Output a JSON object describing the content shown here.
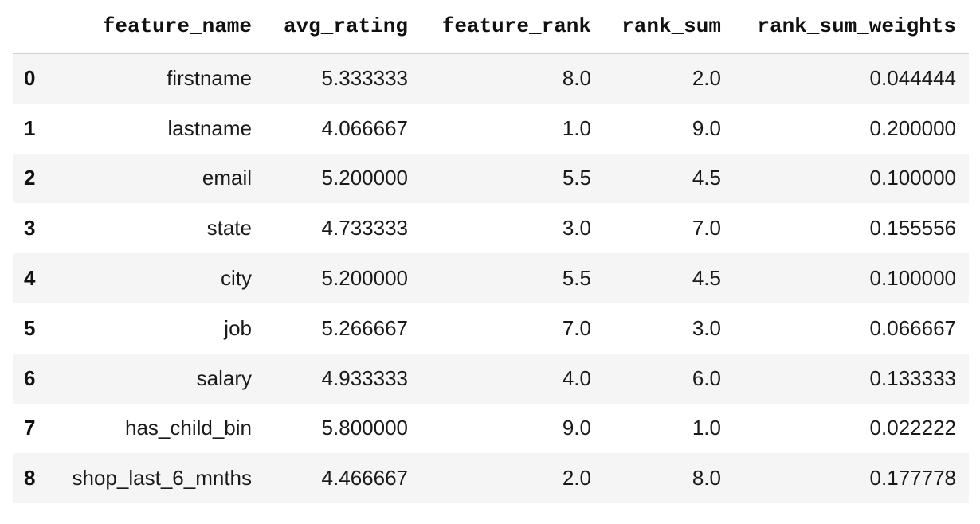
{
  "table": {
    "columns": [
      "",
      "feature_name",
      "avg_rating",
      "feature_rank",
      "rank_sum",
      "rank_sum_weights"
    ],
    "rows": [
      {
        "index": "0",
        "feature_name": "firstname",
        "avg_rating": "5.333333",
        "feature_rank": "8.0",
        "rank_sum": "2.0",
        "rank_sum_weights": "0.044444"
      },
      {
        "index": "1",
        "feature_name": "lastname",
        "avg_rating": "4.066667",
        "feature_rank": "1.0",
        "rank_sum": "9.0",
        "rank_sum_weights": "0.200000"
      },
      {
        "index": "2",
        "feature_name": "email",
        "avg_rating": "5.200000",
        "feature_rank": "5.5",
        "rank_sum": "4.5",
        "rank_sum_weights": "0.100000"
      },
      {
        "index": "3",
        "feature_name": "state",
        "avg_rating": "4.733333",
        "feature_rank": "3.0",
        "rank_sum": "7.0",
        "rank_sum_weights": "0.155556"
      },
      {
        "index": "4",
        "feature_name": "city",
        "avg_rating": "5.200000",
        "feature_rank": "5.5",
        "rank_sum": "4.5",
        "rank_sum_weights": "0.100000"
      },
      {
        "index": "5",
        "feature_name": "job",
        "avg_rating": "5.266667",
        "feature_rank": "7.0",
        "rank_sum": "3.0",
        "rank_sum_weights": "0.066667"
      },
      {
        "index": "6",
        "feature_name": "salary",
        "avg_rating": "4.933333",
        "feature_rank": "4.0",
        "rank_sum": "6.0",
        "rank_sum_weights": "0.133333"
      },
      {
        "index": "7",
        "feature_name": "has_child_bin",
        "avg_rating": "5.800000",
        "feature_rank": "9.0",
        "rank_sum": "1.0",
        "rank_sum_weights": "0.022222"
      },
      {
        "index": "8",
        "feature_name": "shop_last_6_mnths",
        "avg_rating": "4.466667",
        "feature_rank": "2.0",
        "rank_sum": "8.0",
        "rank_sum_weights": "0.177778"
      }
    ]
  }
}
